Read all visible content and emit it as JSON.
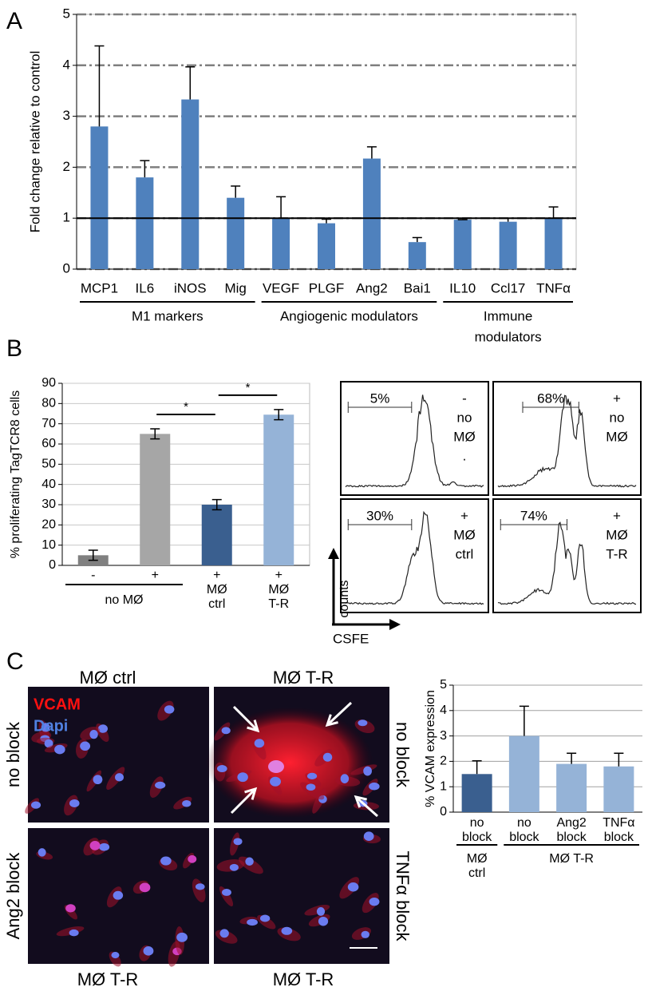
{
  "panel_labels": [
    "A",
    "B",
    "C"
  ],
  "chart_data": [
    {
      "type": "bar",
      "ylabel": "Fold change relative to control",
      "categories": [
        "MCP1",
        "IL6",
        "iNOS",
        "Mig",
        "VEGF",
        "PLGF",
        "Ang2",
        "Bai1",
        "IL10",
        "Ccl17",
        "TNFα"
      ],
      "values": [
        2.8,
        1.8,
        3.33,
        1.4,
        1.0,
        0.9,
        2.17,
        0.53,
        0.97,
        0.93,
        1.0
      ],
      "errors": [
        1.58,
        0.33,
        0.64,
        0.23,
        0.42,
        0.08,
        0.23,
        0.09,
        0,
        0.07,
        0.22
      ],
      "error_bars": "upper",
      "color": "#4f81bd",
      "ylim": [
        0,
        5
      ],
      "yticks": [
        0,
        1,
        2,
        3,
        4,
        5
      ],
      "grid": "dashdot",
      "refline": 1,
      "groups": [
        {
          "lines": [
            "M1 markers"
          ],
          "span": [
            0,
            3
          ]
        },
        {
          "lines": [
            "Angiogenic modulators"
          ],
          "span": [
            4,
            7
          ]
        },
        {
          "lines": [
            "Immune",
            "modulators"
          ],
          "span": [
            8,
            10
          ]
        }
      ]
    },
    {
      "type": "bar",
      "ylabel": "% proliferating TagTCR8 cells",
      "category_lines": [
        [
          "-"
        ],
        [
          "+"
        ],
        [
          "+",
          "MØ",
          "ctrl"
        ],
        [
          "+",
          "MØ",
          "T-R"
        ]
      ],
      "values": [
        5,
        65,
        30,
        74.5
      ],
      "errors": [
        2.5,
        2.5,
        2.5,
        2.5
      ],
      "error_bars": "both",
      "colors": [
        "#808080",
        "#a6a6a6",
        "#3a5f8f",
        "#95b3d7"
      ],
      "ylim": [
        0,
        90
      ],
      "yticks": [
        0,
        10,
        20,
        30,
        40,
        50,
        60,
        70,
        80,
        90
      ],
      "grid": "solid",
      "groups": [
        {
          "lines": [
            "no MØ"
          ],
          "span": [
            0,
            1
          ]
        }
      ],
      "significance": [
        {
          "label": "*",
          "between": [
            1,
            2
          ]
        },
        {
          "label": "*",
          "between": [
            2,
            3
          ]
        }
      ]
    },
    {
      "type": "bar",
      "ylabel": "% VCAM expression",
      "category_lines": [
        [
          "no",
          "block"
        ],
        [
          "no",
          "block"
        ],
        [
          "Ang2",
          "block"
        ],
        [
          "TNFα",
          "block"
        ]
      ],
      "values": [
        1.5,
        3.0,
        1.9,
        1.8
      ],
      "errors": [
        0.52,
        1.17,
        0.42,
        0.52
      ],
      "error_bars": "upper",
      "colors": [
        "#3a5f8f",
        "#95b3d7",
        "#95b3d7",
        "#95b3d7"
      ],
      "ylim": [
        0,
        5
      ],
      "yticks": [
        0,
        1,
        2,
        3,
        4,
        5
      ],
      "grid": "solid",
      "groups": [
        {
          "lines": [
            "MØ",
            "ctrl"
          ],
          "span": [
            0,
            0
          ]
        },
        {
          "lines": [
            "MØ T-R"
          ],
          "span": [
            1,
            3
          ]
        }
      ]
    }
  ],
  "flow_histograms": {
    "y_axis": "counts",
    "x_axis": "CSFE",
    "panels": [
      {
        "percent": "5%",
        "lines": [
          "-",
          "no",
          "MØ",
          "."
        ]
      },
      {
        "percent": "68%",
        "lines": [
          "+",
          "no",
          "MØ"
        ]
      },
      {
        "percent": "30%",
        "lines": [
          "+",
          "MØ",
          "ctrl"
        ]
      },
      {
        "percent": "74%",
        "lines": [
          "+",
          "MØ",
          "T-R"
        ]
      }
    ]
  },
  "micrographs": {
    "column_headers": [
      "MØ  ctrl",
      "MØ T-R"
    ],
    "column_footers": [
      "MØ T-R",
      "MØ T-R"
    ],
    "row_labels_left": [
      "no block",
      "Ang2 block"
    ],
    "row_labels_right": [
      "no block",
      "TNFα block"
    ],
    "stain_labels": [
      "VCAM",
      "Dapi"
    ]
  }
}
